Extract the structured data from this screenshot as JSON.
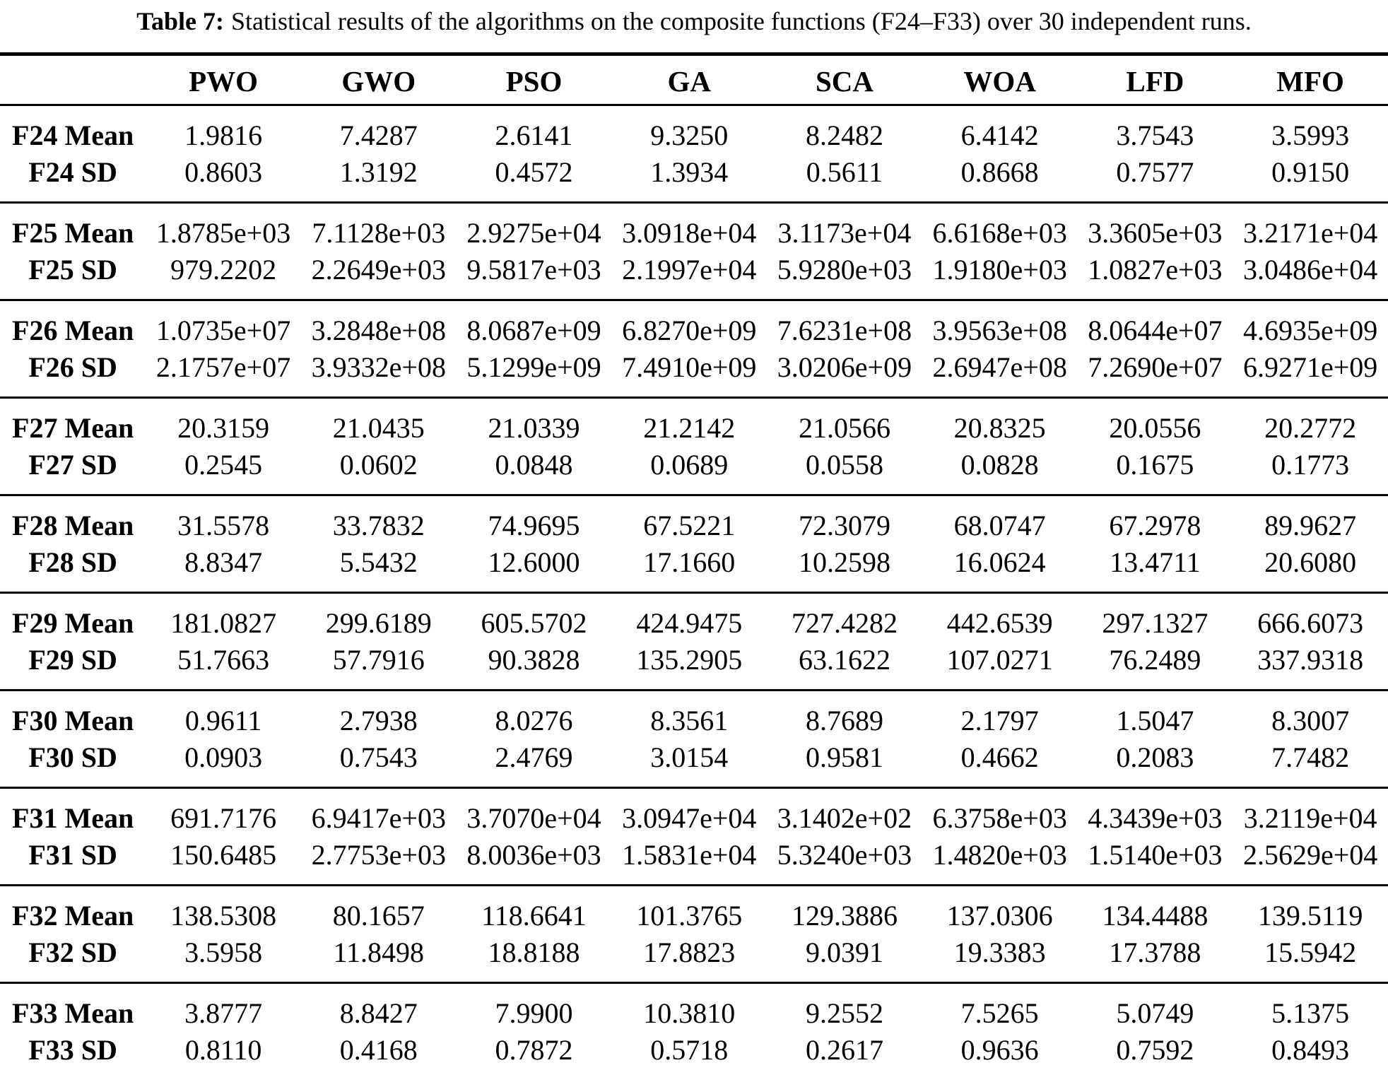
{
  "caption": {
    "label": "Table 7:",
    "text": "Statistical results of the algorithms on the composite functions (F24–F33) over 30 independent runs."
  },
  "table": {
    "columns": [
      "",
      "PWO",
      "GWO",
      "PSO",
      "GA",
      "SCA",
      "WOA",
      "LFD",
      "MFO"
    ],
    "groups": [
      {
        "function": "F24",
        "rows": [
          {
            "label": "F24 Mean",
            "values": [
              "1.9816",
              "7.4287",
              "2.6141",
              "9.3250",
              "8.2482",
              "6.4142",
              "3.7543",
              "3.5993"
            ]
          },
          {
            "label": "F24 SD",
            "values": [
              "0.8603",
              "1.3192",
              "0.4572",
              "1.3934",
              "0.5611",
              "0.8668",
              "0.7577",
              "0.9150"
            ]
          }
        ]
      },
      {
        "function": "F25",
        "rows": [
          {
            "label": "F25 Mean",
            "values": [
              "1.8785e+03",
              "7.1128e+03",
              "2.9275e+04",
              "3.0918e+04",
              "3.1173e+04",
              "6.6168e+03",
              "3.3605e+03",
              "3.2171e+04"
            ]
          },
          {
            "label": "F25 SD",
            "values": [
              "979.2202",
              "2.2649e+03",
              "9.5817e+03",
              "2.1997e+04",
              "5.9280e+03",
              "1.9180e+03",
              "1.0827e+03",
              "3.0486e+04"
            ]
          }
        ]
      },
      {
        "function": "F26",
        "rows": [
          {
            "label": "F26 Mean",
            "values": [
              "1.0735e+07",
              "3.2848e+08",
              "8.0687e+09",
              "6.8270e+09",
              "7.6231e+08",
              "3.9563e+08",
              "8.0644e+07",
              "4.6935e+09"
            ]
          },
          {
            "label": "F26 SD",
            "values": [
              "2.1757e+07",
              "3.9332e+08",
              "5.1299e+09",
              "7.4910e+09",
              "3.0206e+09",
              "2.6947e+08",
              "7.2690e+07",
              "6.9271e+09"
            ]
          }
        ]
      },
      {
        "function": "F27",
        "rows": [
          {
            "label": "F27 Mean",
            "values": [
              "20.3159",
              "21.0435",
              "21.0339",
              "21.2142",
              "21.0566",
              "20.8325",
              "20.0556",
              "20.2772"
            ]
          },
          {
            "label": "F27 SD",
            "values": [
              "0.2545",
              "0.0602",
              "0.0848",
              "0.0689",
              "0.0558",
              "0.0828",
              "0.1675",
              "0.1773"
            ]
          }
        ]
      },
      {
        "function": "F28",
        "rows": [
          {
            "label": "F28 Mean",
            "values": [
              "31.5578",
              "33.7832",
              "74.9695",
              "67.5221",
              "72.3079",
              "68.0747",
              "67.2978",
              "89.9627"
            ]
          },
          {
            "label": "F28 SD",
            "values": [
              "8.8347",
              "5.5432",
              "12.6000",
              "17.1660",
              "10.2598",
              "16.0624",
              "13.4711",
              "20.6080"
            ]
          }
        ]
      },
      {
        "function": "F29",
        "rows": [
          {
            "label": "F29 Mean",
            "values": [
              "181.0827",
              "299.6189",
              "605.5702",
              "424.9475",
              "727.4282",
              "442.6539",
              "297.1327",
              "666.6073"
            ]
          },
          {
            "label": "F29 SD",
            "values": [
              "51.7663",
              "57.7916",
              "90.3828",
              "135.2905",
              "63.1622",
              "107.0271",
              "76.2489",
              "337.9318"
            ]
          }
        ]
      },
      {
        "function": "F30",
        "rows": [
          {
            "label": "F30 Mean",
            "values": [
              "0.9611",
              "2.7938",
              "8.0276",
              "8.3561",
              "8.7689",
              "2.1797",
              "1.5047",
              "8.3007"
            ]
          },
          {
            "label": "F30 SD",
            "values": [
              "0.0903",
              "0.7543",
              "2.4769",
              "3.0154",
              "0.9581",
              "0.4662",
              "0.2083",
              "7.7482"
            ]
          }
        ]
      },
      {
        "function": "F31",
        "rows": [
          {
            "label": "F31 Mean",
            "values": [
              "691.7176",
              "6.9417e+03",
              "3.7070e+04",
              "3.0947e+04",
              "3.1402e+02",
              "6.3758e+03",
              "4.3439e+03",
              "3.2119e+04"
            ]
          },
          {
            "label": "F31 SD",
            "values": [
              "150.6485",
              "2.7753e+03",
              "8.0036e+03",
              "1.5831e+04",
              "5.3240e+03",
              "1.4820e+03",
              "1.5140e+03",
              "2.5629e+04"
            ]
          }
        ]
      },
      {
        "function": "F32",
        "rows": [
          {
            "label": "F32 Mean",
            "values": [
              "138.5308",
              "80.1657",
              "118.6641",
              "101.3765",
              "129.3886",
              "137.0306",
              "134.4488",
              "139.5119"
            ]
          },
          {
            "label": "F32 SD",
            "values": [
              "3.5958",
              "11.8498",
              "18.8188",
              "17.8823",
              "9.0391",
              "19.3383",
              "17.3788",
              "15.5942"
            ]
          }
        ]
      },
      {
        "function": "F33",
        "rows": [
          {
            "label": "F33 Mean",
            "values": [
              "3.8777",
              "8.8427",
              "7.9900",
              "10.3810",
              "9.2552",
              "7.5265",
              "5.0749",
              "5.1375"
            ]
          },
          {
            "label": "F33 SD",
            "values": [
              "0.8110",
              "0.4168",
              "0.7872",
              "0.5718",
              "0.2617",
              "0.9636",
              "0.7592",
              "0.8493"
            ]
          }
        ]
      }
    ]
  }
}
